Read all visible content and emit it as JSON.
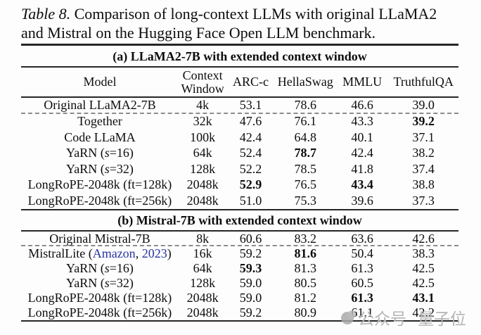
{
  "caption": {
    "label": "Table 8.",
    "line1_rest": " Comparison of long-context LLMs with original LLaMA2",
    "line2": "and Mistral on the Hugging Face Open LLM benchmark."
  },
  "columns": [
    "Model",
    "Context Window",
    "ARC-c",
    "HellaSwag",
    "MMLU",
    "TruthfulQA"
  ],
  "tables": [
    {
      "title": "(a) LLaMA2-7B with extended context window",
      "rows": [
        {
          "dashed_below": true,
          "cells": [
            {
              "t": "Original LLaMA2-7B"
            },
            {
              "t": "4k"
            },
            {
              "t": "53.1"
            },
            {
              "t": "78.6"
            },
            {
              "t": "46.6"
            },
            {
              "t": "39.0"
            }
          ]
        },
        {
          "cells": [
            {
              "t": "Together"
            },
            {
              "t": "32k"
            },
            {
              "t": "47.6"
            },
            {
              "t": "76.1"
            },
            {
              "t": "43.3"
            },
            {
              "t": "39.2",
              "b": true
            }
          ]
        },
        {
          "cells": [
            {
              "t": "Code LLaMA"
            },
            {
              "t": "100k"
            },
            {
              "t": "42.4"
            },
            {
              "t": "64.8"
            },
            {
              "t": "40.1"
            },
            {
              "t": "37.1"
            }
          ]
        },
        {
          "cells": [
            {
              "parts": [
                {
                  "t": "YaRN ("
                },
                {
                  "t": "s",
                  "c": "it"
                },
                {
                  "t": "=16)"
                }
              ]
            },
            {
              "t": "64k"
            },
            {
              "t": "52.4"
            },
            {
              "t": "78.7",
              "b": true
            },
            {
              "t": "42.4"
            },
            {
              "t": "38.2"
            }
          ]
        },
        {
          "cells": [
            {
              "parts": [
                {
                  "t": "YaRN ("
                },
                {
                  "t": "s",
                  "c": "it"
                },
                {
                  "t": "=32)"
                }
              ]
            },
            {
              "t": "128k"
            },
            {
              "t": "52.2"
            },
            {
              "t": "78.5"
            },
            {
              "t": "41.8"
            },
            {
              "t": "37.4"
            }
          ]
        },
        {
          "cells": [
            {
              "t": "LongRoPE-2048k (ft=128k)"
            },
            {
              "t": "2048k"
            },
            {
              "t": "52.9",
              "b": true
            },
            {
              "t": "76.5"
            },
            {
              "t": "43.4",
              "b": true
            },
            {
              "t": "38.8"
            }
          ]
        },
        {
          "cells": [
            {
              "t": "LongRoPE-2048k (ft=256k)"
            },
            {
              "t": "2048k"
            },
            {
              "t": "51.0"
            },
            {
              "t": "75.3"
            },
            {
              "t": "39.6"
            },
            {
              "t": "37.3"
            }
          ]
        }
      ]
    },
    {
      "title": "(b) Mistral-7B with extended context window",
      "rows": [
        {
          "dashed_below": true,
          "cells": [
            {
              "t": "Original Mistral-7B"
            },
            {
              "t": "8k"
            },
            {
              "t": "60.6"
            },
            {
              "t": "83.2"
            },
            {
              "t": "63.6"
            },
            {
              "t": "42.6"
            }
          ]
        },
        {
          "cells": [
            {
              "parts": [
                {
                  "t": "MistralLite ("
                },
                {
                  "t": "Amazon",
                  "c": "link"
                },
                {
                  "t": ", "
                },
                {
                  "t": "2023",
                  "c": "link"
                },
                {
                  "t": ")"
                }
              ]
            },
            {
              "t": "16k"
            },
            {
              "t": "59.2"
            },
            {
              "t": "81.6",
              "b": true
            },
            {
              "t": "50.4"
            },
            {
              "t": "38.3"
            }
          ]
        },
        {
          "cells": [
            {
              "parts": [
                {
                  "t": "YaRN ("
                },
                {
                  "t": "s",
                  "c": "it"
                },
                {
                  "t": "=16)"
                }
              ]
            },
            {
              "t": "64k"
            },
            {
              "t": "59.3",
              "b": true
            },
            {
              "t": "81.3"
            },
            {
              "t": "61.3"
            },
            {
              "t": "42.5"
            }
          ]
        },
        {
          "cells": [
            {
              "parts": [
                {
                  "t": "YaRN ("
                },
                {
                  "t": "s",
                  "c": "it"
                },
                {
                  "t": "=32)"
                }
              ]
            },
            {
              "t": "128k"
            },
            {
              "t": "59.0"
            },
            {
              "t": "80.5"
            },
            {
              "t": "60.5"
            },
            {
              "t": "42.5"
            }
          ]
        },
        {
          "cells": [
            {
              "t": "LongRoPE-2048k (ft=128k)"
            },
            {
              "t": "2048k"
            },
            {
              "t": "59.0"
            },
            {
              "t": "81.2"
            },
            {
              "t": "61.3",
              "b": true
            },
            {
              "t": "43.1",
              "b": true
            }
          ]
        },
        {
          "cells": [
            {
              "t": "LongRoPE-2048k (ft=256k)"
            },
            {
              "t": "2048k"
            },
            {
              "t": "59.2"
            },
            {
              "t": "80.9"
            },
            {
              "t": "61.1"
            },
            {
              "t": "42.2"
            }
          ]
        }
      ]
    }
  ],
  "watermark": {
    "icon": "qbitai-logo",
    "text1": "公众号",
    "text2": "量子位"
  },
  "colors": {
    "link": "#2634a2",
    "rule": "#262626",
    "dashed": "#8c8c8c",
    "watermark": "#b5b5b5"
  }
}
